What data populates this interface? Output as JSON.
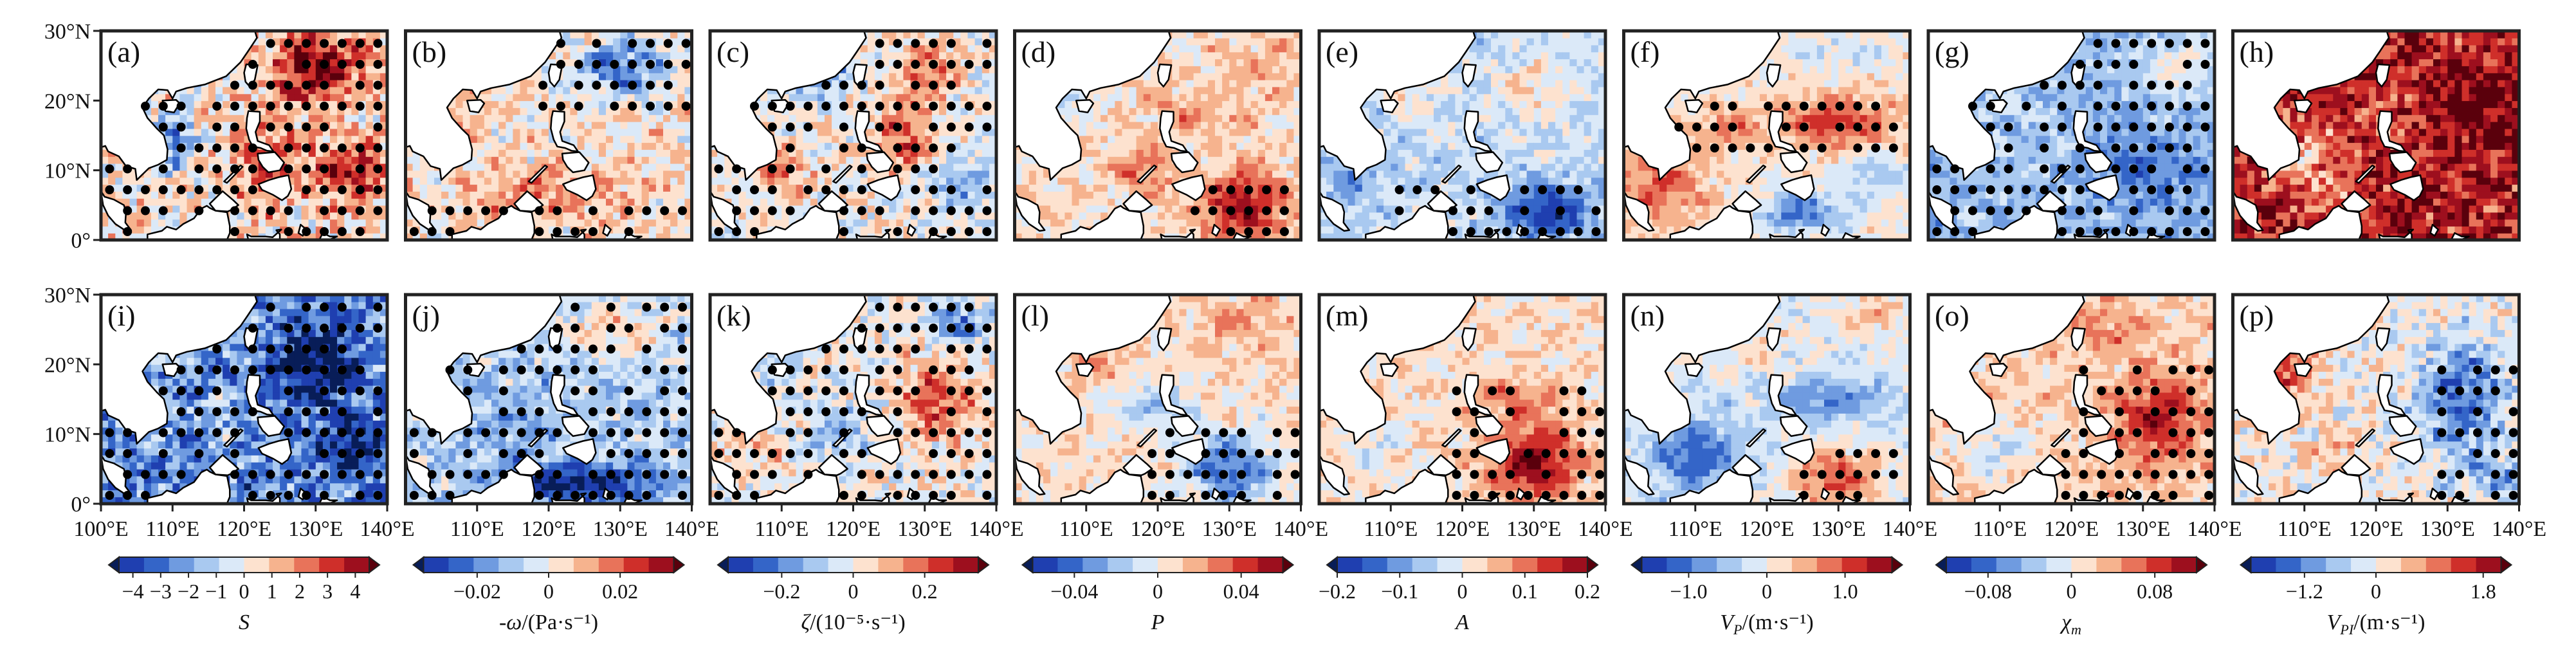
{
  "chart_data": {
    "type": "heatmap",
    "figure_layout": "2 rows x 8 columns of map panels with 8 colorbars (one per column)",
    "latitude_axis": {
      "ticks": [
        "0°",
        "10°N",
        "20°N",
        "30°N"
      ],
      "range": [
        0,
        30
      ]
    },
    "longitude_axis": {
      "first_column_ticks": [
        "100°E",
        "110°E",
        "120°E",
        "130°E",
        "140°E"
      ],
      "other_columns_ticks": [
        "110°E",
        "120°E",
        "130°E",
        "140°E"
      ],
      "range": [
        100,
        140
      ]
    },
    "significance": "black dots mark stippled (significant) regions",
    "panels": [
      {
        "label": "(a)",
        "variable": "S",
        "dominant_sign": "positive",
        "stippled_region": "most of domain"
      },
      {
        "label": "(b)",
        "variable": "-ω",
        "dominant_sign": "positive",
        "stippled_region": "south and northeast"
      },
      {
        "label": "(c)",
        "variable": "ζ",
        "dominant_sign": "mixed",
        "stippled_region": "most of domain"
      },
      {
        "label": "(d)",
        "variable": "P",
        "dominant_sign": "positive",
        "stippled_region": "southeast corner"
      },
      {
        "label": "(e)",
        "variable": "A",
        "dominant_sign": "negative",
        "stippled_region": "south"
      },
      {
        "label": "(f)",
        "variable": "V_P",
        "dominant_sign": "positive",
        "stippled_region": "central band"
      },
      {
        "label": "(g)",
        "variable": "χ_m",
        "dominant_sign": "negative",
        "stippled_region": "most of domain"
      },
      {
        "label": "(h)",
        "variable": "V_PI",
        "dominant_sign": "positive",
        "stippled_region": "none"
      },
      {
        "label": "(i)",
        "variable": "S",
        "dominant_sign": "negative",
        "stippled_region": "most of domain"
      },
      {
        "label": "(j)",
        "variable": "-ω",
        "dominant_sign": "negative",
        "stippled_region": "most of domain"
      },
      {
        "label": "(k)",
        "variable": "ζ",
        "dominant_sign": "mixed",
        "stippled_region": "most of domain"
      },
      {
        "label": "(l)",
        "variable": "P",
        "dominant_sign": "negative",
        "stippled_region": "southeast"
      },
      {
        "label": "(m)",
        "variable": "A",
        "dominant_sign": "positive",
        "stippled_region": "southeast"
      },
      {
        "label": "(n)",
        "variable": "V_P",
        "dominant_sign": "negative",
        "stippled_region": "southeast"
      },
      {
        "label": "(o)",
        "variable": "χ_m",
        "dominant_sign": "positive",
        "stippled_region": "east"
      },
      {
        "label": "(p)",
        "variable": "V_PI",
        "dominant_sign": "mixed",
        "stippled_region": "east"
      }
    ],
    "colorbars": [
      {
        "label_main": "S",
        "label_sub": "",
        "label_unit": "",
        "ticks": [
          "-4",
          "-3",
          "-2",
          "-1",
          "0",
          "1",
          "2",
          "3",
          "4"
        ],
        "range": [
          -4.5,
          4.5
        ]
      },
      {
        "label_main": "-ω",
        "label_sub": "",
        "label_unit": "/(Pa·s⁻¹)",
        "ticks": [
          "-0.02",
          "0",
          "0.02"
        ],
        "range": [
          -0.035,
          0.035
        ]
      },
      {
        "label_main": "ζ",
        "label_sub": "",
        "label_unit": "/(10⁻⁵·s⁻¹)",
        "ticks": [
          "-0.2",
          "0",
          "0.2"
        ],
        "range": [
          -0.35,
          0.35
        ]
      },
      {
        "label_main": "P",
        "label_sub": "",
        "label_unit": "",
        "ticks": [
          "-0.04",
          "0",
          "0.04"
        ],
        "range": [
          -0.06,
          0.06
        ]
      },
      {
        "label_main": "A",
        "label_sub": "",
        "label_unit": "",
        "ticks": [
          "-0.2",
          "-0.1",
          "0",
          "0.1",
          "0.2"
        ],
        "range": [
          -0.2,
          0.2
        ]
      },
      {
        "label_main": "V",
        "label_sub": "P",
        "label_unit": "/(m·s⁻¹)",
        "ticks": [
          "-1.0",
          "0",
          "1.0"
        ],
        "range": [
          -1.6,
          1.6
        ]
      },
      {
        "label_main": "χ",
        "label_sub": "m",
        "label_unit": "",
        "ticks": [
          "-0.08",
          "0",
          "0.08"
        ],
        "range": [
          -0.12,
          0.12
        ]
      },
      {
        "label_main": "V",
        "label_sub": "PI",
        "label_unit": "/(m·s⁻¹)",
        "ticks": [
          "-1.2",
          "0",
          "1.8"
        ],
        "range": [
          -2.1,
          2.1
        ]
      }
    ],
    "colors": {
      "diverging": [
        "#081d58",
        "#1f3fb0",
        "#3465c8",
        "#6f9be0",
        "#a9c9f0",
        "#dbe9f8",
        "#fde2cf",
        "#f6b38e",
        "#e8735a",
        "#cf2f2a",
        "#9d0f1e",
        "#5a000c"
      ],
      "land": "#ffffff",
      "coastline": "#000000",
      "stipple": "#000000"
    }
  }
}
